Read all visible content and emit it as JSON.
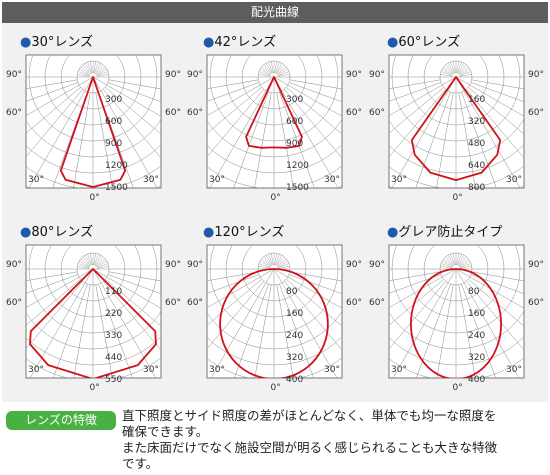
{
  "header": {
    "title": "配光曲線"
  },
  "note": {
    "badge": "レンズの特徴",
    "lines": [
      "直下照度とサイド照度の差がほとんどなく、単体でも均一な照度を",
      "確保できます。",
      "また床面だけでなく施設空間が明るく感じられることも大きな特徴",
      "です。"
    ]
  },
  "colors": {
    "curve": "#d0121b",
    "bullet": "#1f5aa8",
    "badge": "#49b043",
    "header": "#5d5d5d"
  },
  "charts": [
    {
      "title": "●30°レンズ",
      "radial_ticks": [
        "300",
        "600",
        "900",
        "1200",
        "1500"
      ],
      "curve": [
        [
          -90,
          0
        ],
        [
          -20,
          0
        ],
        [
          -19,
          1350
        ],
        [
          -15,
          1450
        ],
        [
          0,
          1500
        ],
        [
          15,
          1450
        ],
        [
          19,
          1350
        ],
        [
          20,
          0
        ],
        [
          90,
          0
        ]
      ]
    },
    {
      "title": "●42°レンズ",
      "radial_ticks": [
        "300",
        "600",
        "900",
        "1200",
        "1500"
      ],
      "curve": [
        [
          -90,
          0
        ],
        [
          -26,
          0
        ],
        [
          -25,
          900
        ],
        [
          -20,
          1000
        ],
        [
          -10,
          980
        ],
        [
          0,
          960
        ],
        [
          10,
          980
        ],
        [
          20,
          1000
        ],
        [
          25,
          900
        ],
        [
          26,
          0
        ],
        [
          90,
          0
        ]
      ]
    },
    {
      "title": "●60°レンズ",
      "radial_ticks": [
        "160",
        "320",
        "480",
        "640",
        "800"
      ],
      "curve": [
        [
          -90,
          0
        ],
        [
          -36,
          0
        ],
        [
          -35,
          560
        ],
        [
          -28,
          640
        ],
        [
          -15,
          720
        ],
        [
          0,
          750
        ],
        [
          15,
          720
        ],
        [
          28,
          640
        ],
        [
          35,
          560
        ],
        [
          36,
          0
        ],
        [
          90,
          0
        ]
      ]
    },
    {
      "title": "●80°レンズ",
      "radial_ticks": [
        "110",
        "220",
        "330",
        "440",
        "550"
      ],
      "curve": [
        [
          -90,
          0
        ],
        [
          -46,
          0
        ],
        [
          -45,
          440
        ],
        [
          -40,
          490
        ],
        [
          -25,
          530
        ],
        [
          0,
          550
        ],
        [
          25,
          530
        ],
        [
          40,
          490
        ],
        [
          45,
          440
        ],
        [
          46,
          0
        ],
        [
          90,
          0
        ]
      ]
    },
    {
      "title": "●120°レンズ",
      "radial_ticks": [
        "80",
        "160",
        "240",
        "320",
        "400"
      ],
      "curve": "circle",
      "peak": 400
    },
    {
      "title": "●グレア防止タイプ",
      "radial_ticks": [
        "80",
        "160",
        "240",
        "320",
        "400"
      ],
      "curve": "oval",
      "peak": 400
    }
  ],
  "angle_labels": {
    "a90": "90°",
    "a60": "60°",
    "a30": "30°",
    "a0": "0°"
  }
}
